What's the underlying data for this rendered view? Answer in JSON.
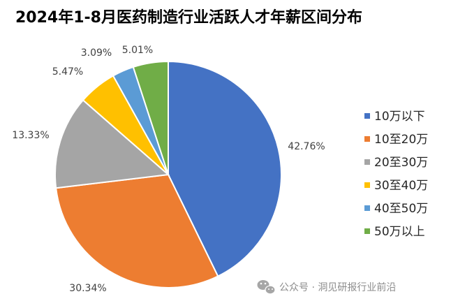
{
  "chart_data": {
    "type": "pie",
    "title": "2024年1-8月医药制造行业活跃人才年薪区间分布",
    "categories": [
      "10万以下",
      "10至20万",
      "20至30万",
      "30至40万",
      "40至50万",
      "50万以上"
    ],
    "values": [
      42.76,
      30.34,
      13.33,
      5.47,
      3.09,
      5.01
    ],
    "value_labels": [
      "42.76%",
      "30.34%",
      "13.33%",
      "5.47%",
      "3.09%",
      "5.01%"
    ],
    "colors": [
      "#4472C4",
      "#ED7D31",
      "#A5A5A5",
      "#FFC000",
      "#5B9BD5",
      "#70AD47"
    ],
    "legend_position": "right"
  },
  "watermark": {
    "text": "公众号 · 洞见研报行业前沿",
    "icon": "wechat-icon"
  }
}
